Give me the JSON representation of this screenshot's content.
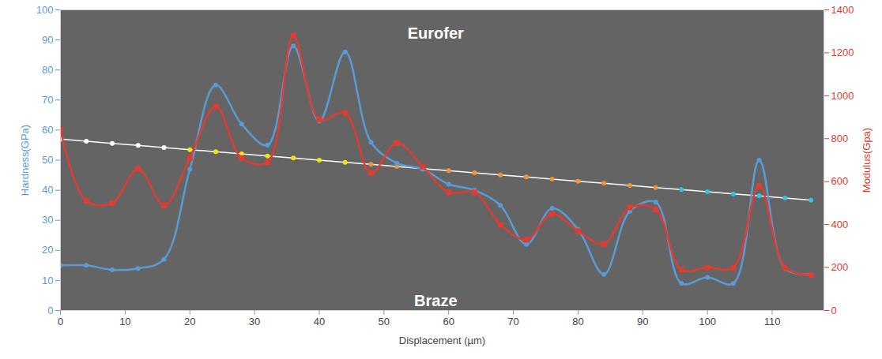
{
  "chart_data": {
    "type": "line",
    "xlabel": "Displacement (µm)",
    "ylabel": "Hardness(GPa)",
    "y2label": "Modulus(Gpa)",
    "x": [
      0,
      4,
      8,
      12,
      16,
      20,
      24,
      28,
      32,
      36,
      40,
      44,
      48,
      52,
      56,
      60,
      64,
      68,
      72,
      76,
      80,
      84,
      88,
      92,
      96,
      100,
      104,
      108,
      112,
      116
    ],
    "xlim": [
      0,
      118
    ],
    "xticks": [
      0,
      10,
      20,
      30,
      40,
      50,
      60,
      70,
      80,
      90,
      100,
      110
    ],
    "ylim": [
      0,
      100
    ],
    "yticks": [
      0,
      10,
      20,
      30,
      40,
      50,
      60,
      70,
      80,
      90,
      100
    ],
    "y2lim": [
      0,
      1400
    ],
    "y2ticks": [
      0,
      200,
      400,
      600,
      800,
      1000,
      1200,
      1400
    ],
    "series": [
      {
        "color": "#ffffff",
        "line_style": "solid",
        "marker": "circle",
        "colors": [
          "#ffffff",
          "#ffffff",
          "#ffffff",
          "#ffffff",
          "#ffffff",
          "#f2e40c",
          "#f2e40c",
          "#f2e40c",
          "#f2e40c",
          "#f2e40c",
          "#f2e40c",
          "#f2e40c",
          "#f0943c",
          "#f0943c",
          "#f0943c",
          "#f0943c",
          "#f0943c",
          "#f0943c",
          "#f0943c",
          "#f0943c",
          "#f0943c",
          "#f0943c",
          "#f0943c",
          "#f0943c",
          "#33c2e0",
          "#33c2e0",
          "#33c2e0",
          "#33c2e0",
          "#33c2e0",
          "#33c2e0"
        ],
        "values": [
          57,
          56.3,
          55.6,
          54.9,
          54.2,
          53.5,
          52.8,
          52.1,
          51.4,
          50.7,
          50,
          49.3,
          48.6,
          47.9,
          47.2,
          46.5,
          45.8,
          45.1,
          44.4,
          43.7,
          43,
          42.3,
          41.6,
          40.9,
          40.2,
          39.5,
          38.8,
          38.1,
          37.4,
          36.7
        ]
      },
      {
        "color": "#5b9bd5",
        "line_style": "smooth",
        "marker": "circle",
        "values": [
          15,
          15,
          13.5,
          14,
          17,
          47,
          75,
          62,
          55,
          88,
          63,
          86,
          56,
          49,
          47,
          42,
          40,
          35,
          22,
          34,
          27,
          12,
          33,
          36,
          9,
          11,
          9,
          50,
          14,
          12
        ]
      },
      {
        "color": "#e03c31",
        "line_style": "smooth",
        "marker": "square",
        "axis": "y2",
        "values": [
          840,
          510,
          500,
          660,
          490,
          710,
          950,
          710,
          690,
          1280,
          890,
          920,
          640,
          780,
          670,
          550,
          550,
          400,
          330,
          450,
          370,
          310,
          480,
          470,
          190,
          200,
          200,
          580,
          200,
          165
        ]
      }
    ],
    "annotations": [
      {
        "text": "Eurofer",
        "x": 58,
        "y": 92
      },
      {
        "text": "Braze",
        "x": 58,
        "y": 3
      }
    ]
  }
}
